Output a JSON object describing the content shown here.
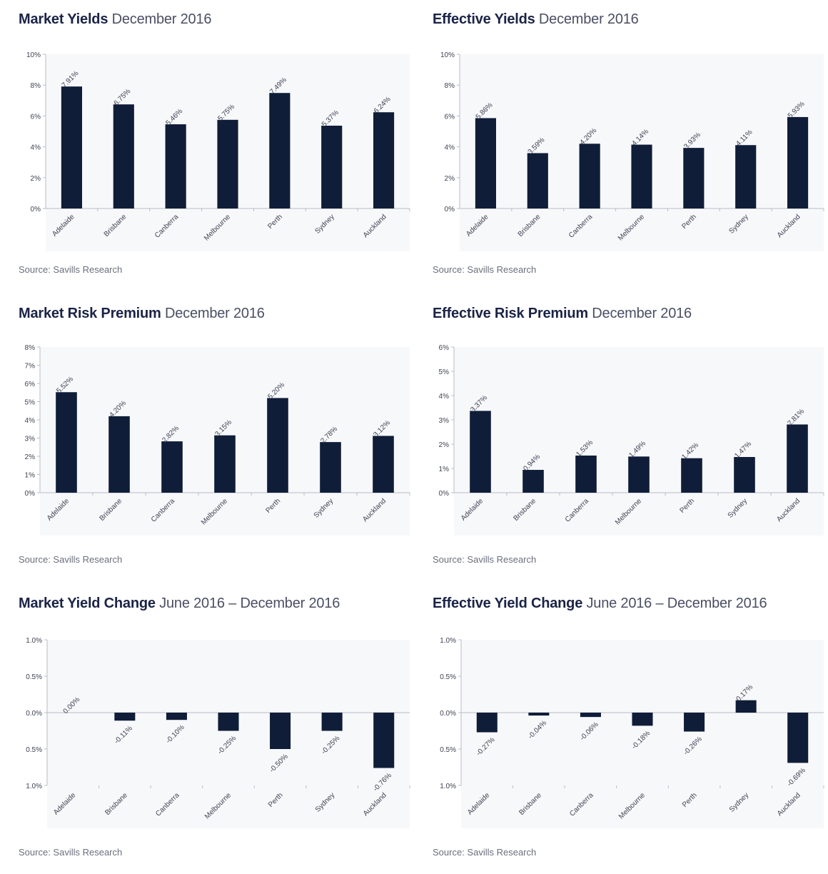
{
  "colors": {
    "bar": "#0f1d38",
    "axis": "#b9bcc4",
    "plot_bg": "#f7f8fa",
    "tick_text": "#3e4252",
    "label_text": "#3e4252"
  },
  "charts": [
    {
      "title_bold": "Market Yields",
      "title_rest": " December 2016",
      "source": "Source: Savills Research",
      "chart_data": {
        "type": "bar",
        "categories": [
          "Adelaide",
          "Brisbane",
          "Canberra",
          "Melbourne",
          "Perth",
          "Sydney",
          "Auckland"
        ],
        "values": [
          7.91,
          6.75,
          5.46,
          5.75,
          7.49,
          5.37,
          6.24
        ],
        "data_labels": [
          "7.91%",
          "6.75%",
          "5.46%",
          "5.75%",
          "7.49%",
          "5.37%",
          "6.24%"
        ],
        "ylim": [
          0,
          10
        ],
        "yticks": [
          0,
          2,
          4,
          6,
          8,
          10
        ],
        "ytick_labels": [
          "0%",
          "2%",
          "4%",
          "6%",
          "8%",
          "10%"
        ]
      }
    },
    {
      "title_bold": "Effective Yields",
      "title_rest": " December 2016",
      "source": "Source: Savills Research",
      "chart_data": {
        "type": "bar",
        "categories": [
          "Adelaide",
          "Brisbane",
          "Canberra",
          "Melbourne",
          "Perth",
          "Sydney",
          "Auckland"
        ],
        "values": [
          5.86,
          3.59,
          4.2,
          4.14,
          3.93,
          4.11,
          5.93
        ],
        "data_labels": [
          "5.86%",
          "3.59%",
          "4.20%",
          "4.14%",
          "3.93%",
          "4.11%",
          "5.93%"
        ],
        "ylim": [
          0,
          10
        ],
        "yticks": [
          0,
          2,
          4,
          6,
          8,
          10
        ],
        "ytick_labels": [
          "0%",
          "2%",
          "4%",
          "6%",
          "8%",
          "10%"
        ]
      }
    },
    {
      "title_bold": "Market Risk Premium",
      "title_rest": " December 2016",
      "source": "Source: Savills Research",
      "chart_data": {
        "type": "bar",
        "categories": [
          "Adelaide",
          "Brisbane",
          "Canberra",
          "Melbourne",
          "Perth",
          "Sydney",
          "Auckland"
        ],
        "values": [
          5.52,
          4.2,
          2.82,
          3.15,
          5.2,
          2.78,
          3.12
        ],
        "data_labels": [
          "5.52%",
          "4.20%",
          "2.82%",
          "3.15%",
          "5.20%",
          "2.78%",
          "3.12%"
        ],
        "ylim": [
          0,
          8
        ],
        "yticks": [
          0,
          1,
          2,
          3,
          4,
          5,
          6,
          7,
          8
        ],
        "ytick_labels": [
          "0%",
          "1%",
          "2%",
          "3%",
          "4%",
          "5%",
          "6%",
          "7%",
          "8%"
        ]
      }
    },
    {
      "title_bold": "Effective Risk Premium",
      "title_rest": " December 2016",
      "source": "Source: Savills Research",
      "chart_data": {
        "type": "bar",
        "categories": [
          "Adelaide",
          "Brisbane",
          "Canberra",
          "Melbourne",
          "Perth",
          "Sydney",
          "Auckland"
        ],
        "values": [
          3.37,
          0.94,
          1.53,
          1.49,
          1.42,
          1.47,
          2.81
        ],
        "data_labels": [
          "3.37%",
          "0.94%",
          "1.53%",
          "1.49%",
          "1.42%",
          "1.47%",
          "2.81%"
        ],
        "ylim": [
          0,
          6
        ],
        "yticks": [
          0,
          1,
          2,
          3,
          4,
          5,
          6
        ],
        "ytick_labels": [
          "0%",
          "1%",
          "2%",
          "3%",
          "4%",
          "5%",
          "6%"
        ]
      }
    },
    {
      "title_bold": "Market Yield Change",
      "title_rest": " June 2016 – December 2016",
      "source": "Source: Savills Research",
      "chart_data": {
        "type": "bar",
        "categories": [
          "Adelaide",
          "Brisbane",
          "Canberra",
          "Melbourne",
          "Perth",
          "Sydney",
          "Auckland"
        ],
        "values": [
          0.0,
          -0.11,
          -0.1,
          -0.25,
          -0.5,
          -0.25,
          -0.76
        ],
        "data_labels": [
          "0.00%",
          "-0.11%",
          "-0.10%",
          "-0.25%",
          "-0.50%",
          "-0.25%",
          "-0.76%"
        ],
        "ylim": [
          -1.0,
          1.0
        ],
        "yticks": [
          1.0,
          0.5,
          0.0,
          -0.5,
          -1.0
        ],
        "ytick_labels": [
          "1.0%",
          "0.5%",
          "0.0%",
          "0.5%",
          "1.0%"
        ]
      }
    },
    {
      "title_bold": "Effective Yield Change",
      "title_rest": " June 2016 – December 2016",
      "source": "Source: Savills Research",
      "chart_data": {
        "type": "bar",
        "categories": [
          "Adelaide",
          "Brisbane",
          "Canberra",
          "Melbourne",
          "Perth",
          "Sydney",
          "Auckland"
        ],
        "values": [
          -0.27,
          -0.04,
          -0.06,
          -0.18,
          -0.26,
          0.17,
          -0.69
        ],
        "data_labels": [
          "-0.27%",
          "-0.04%",
          "-0.06%",
          "-0.18%",
          "-0.26%",
          "0.17%",
          "-0.69%"
        ],
        "ylim": [
          -1.0,
          1.0
        ],
        "yticks": [
          1.0,
          0.5,
          0.0,
          -0.5,
          -1.0
        ],
        "ytick_labels": [
          "1.0%",
          "0.5%",
          "0.0%",
          "0.5%",
          "1.0%"
        ]
      }
    }
  ]
}
